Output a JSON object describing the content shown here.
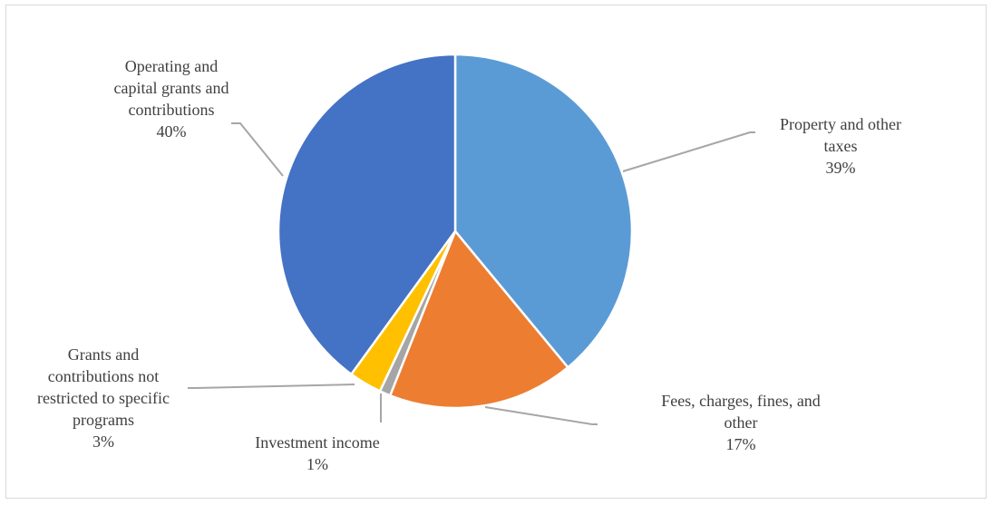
{
  "chart_data": {
    "type": "pie",
    "title": "",
    "slices": [
      {
        "label_lines": [
          "Property and other",
          "taxes"
        ],
        "percent_label": "39%",
        "value": 39,
        "color": "#5B9BD5"
      },
      {
        "label_lines": [
          "Fees, charges, fines, and",
          "other"
        ],
        "percent_label": "17%",
        "value": 17,
        "color": "#ED7D31"
      },
      {
        "label_lines": [
          "Investment income"
        ],
        "percent_label": "1%",
        "value": 1,
        "color": "#A5A5A5"
      },
      {
        "label_lines": [
          "Grants and",
          "contributions not",
          "restricted to specific",
          "programs"
        ],
        "percent_label": "3%",
        "value": 3,
        "color": "#FFC000"
      },
      {
        "label_lines": [
          "Operating and",
          "capital grants and",
          "contributions"
        ],
        "percent_label": "40%",
        "value": 40,
        "color": "#4472C4"
      }
    ],
    "legend": "none",
    "data_labels": "outside-with-leader-lines"
  }
}
